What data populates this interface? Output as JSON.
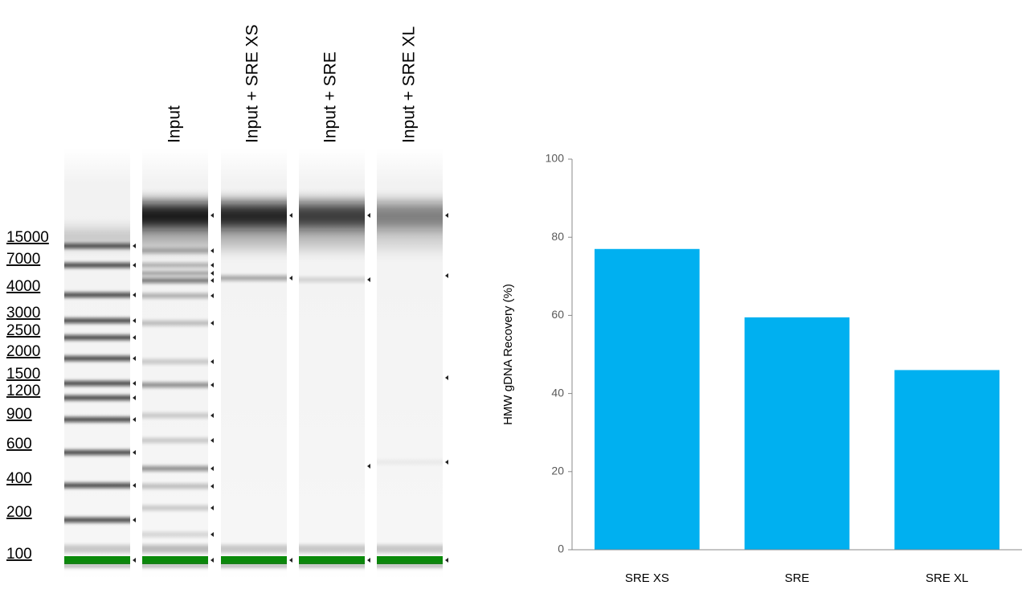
{
  "gel": {
    "ladder_labels": [
      "15000",
      "7000",
      "4000",
      "3000",
      "2500",
      "2000",
      "1500",
      "1200",
      "900",
      "600",
      "400",
      "200",
      "100"
    ],
    "lanes": [
      "Input",
      "Input + SRE XS",
      "Input + SRE",
      "Input + SRE XL"
    ]
  },
  "chart_data": {
    "type": "bar",
    "ylabel": "HMW gDNA Recovery (%)",
    "categories": [
      "SRE XS",
      "SRE",
      "SRE XL"
    ],
    "values": [
      77,
      59.5,
      46
    ],
    "color": "#00b0f0",
    "ylim": [
      0,
      100
    ],
    "yticks": [
      0,
      20,
      40,
      60,
      80,
      100
    ],
    "grid": false
  }
}
